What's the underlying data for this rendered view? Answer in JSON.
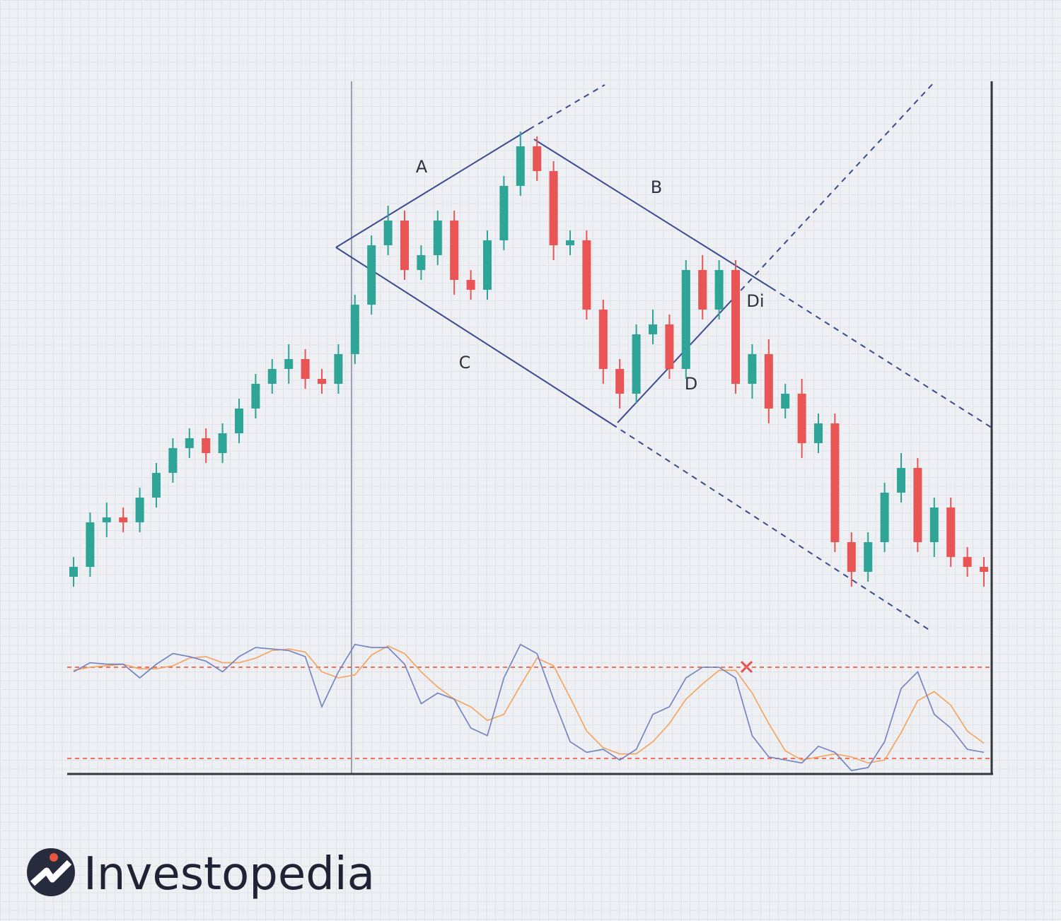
{
  "chart_data": [
    {
      "type": "candlestick",
      "up_color": "#2ea597",
      "down_color": "#e95454",
      "ylim": [
        0,
        110
      ],
      "open": [
        12,
        14,
        23,
        24,
        23,
        28,
        33,
        38,
        40,
        37,
        41,
        46,
        51,
        54,
        56,
        52,
        51,
        57,
        67,
        79,
        84,
        74,
        77,
        84,
        72,
        70,
        80,
        91,
        99,
        94,
        79,
        80,
        66,
        54,
        49,
        61,
        63,
        54,
        74,
        66,
        74,
        51,
        57,
        46,
        49,
        39,
        43,
        19,
        13,
        19,
        29,
        34,
        19,
        26,
        16,
        14
      ],
      "high": [
        16,
        25,
        27,
        26,
        30,
        35,
        40,
        42,
        42,
        43,
        48,
        53,
        56,
        59,
        58,
        54,
        59,
        69,
        81,
        87,
        86,
        79,
        86,
        86,
        74,
        82,
        93,
        102,
        101,
        96,
        82,
        82,
        68,
        56,
        63,
        66,
        65,
        76,
        77,
        76,
        76,
        59,
        60,
        51,
        52,
        45,
        45,
        21,
        21,
        31,
        37,
        36,
        28,
        28,
        18,
        16
      ],
      "low": [
        10,
        12,
        20,
        21,
        21,
        26,
        31,
        36,
        35,
        35,
        39,
        44,
        49,
        51,
        50,
        49,
        49,
        55,
        65,
        77,
        72,
        72,
        75,
        69,
        68,
        68,
        78,
        89,
        92,
        76,
        77,
        64,
        51,
        46,
        47,
        59,
        52,
        52,
        64,
        64,
        49,
        48,
        43,
        44,
        36,
        37,
        17,
        10,
        11,
        17,
        27,
        17,
        16,
        14,
        12,
        10
      ],
      "close": [
        14,
        23,
        24,
        23,
        28,
        33,
        38,
        40,
        37,
        41,
        46,
        51,
        54,
        56,
        52,
        51,
        57,
        67,
        79,
        84,
        74,
        77,
        84,
        72,
        70,
        80,
        91,
        99,
        94,
        79,
        80,
        66,
        54,
        49,
        61,
        63,
        54,
        74,
        66,
        74,
        51,
        57,
        46,
        49,
        39,
        43,
        19,
        13,
        19,
        29,
        34,
        19,
        26,
        16,
        14,
        13
      ],
      "annotations": [
        "A",
        "B",
        "C",
        "D",
        "Di"
      ]
    },
    {
      "type": "line",
      "ylim": [
        0,
        100
      ],
      "levels": [
        80,
        20
      ],
      "level_color": "#f0705a",
      "series": [
        {
          "color": "#7080c0",
          "values": [
            77,
            83,
            82,
            82,
            73,
            82,
            89,
            87,
            84,
            77,
            87,
            93,
            92,
            91,
            87,
            54,
            77,
            95,
            93,
            93,
            82,
            56,
            63,
            59,
            40,
            35,
            73,
            95,
            89,
            59,
            31,
            24,
            26,
            19,
            26,
            49,
            54,
            73,
            80,
            80,
            73,
            35,
            21,
            19,
            17,
            28,
            24,
            12,
            14,
            31,
            66,
            77,
            49,
            40,
            26,
            24
          ]
        },
        {
          "color": "#f5a25a",
          "values": [
            78,
            80,
            81,
            82,
            79,
            79,
            81,
            86,
            87,
            83,
            83,
            86,
            91,
            92,
            90,
            77,
            73,
            75,
            88,
            94,
            89,
            77,
            67,
            59,
            54,
            45,
            49,
            68,
            86,
            81,
            60,
            38,
            27,
            23,
            23,
            31,
            43,
            59,
            69,
            78,
            78,
            63,
            43,
            25,
            19,
            21,
            23,
            21,
            17,
            19,
            37,
            58,
            64,
            55,
            38,
            30
          ]
        }
      ]
    }
  ],
  "brand": "Investopedia"
}
